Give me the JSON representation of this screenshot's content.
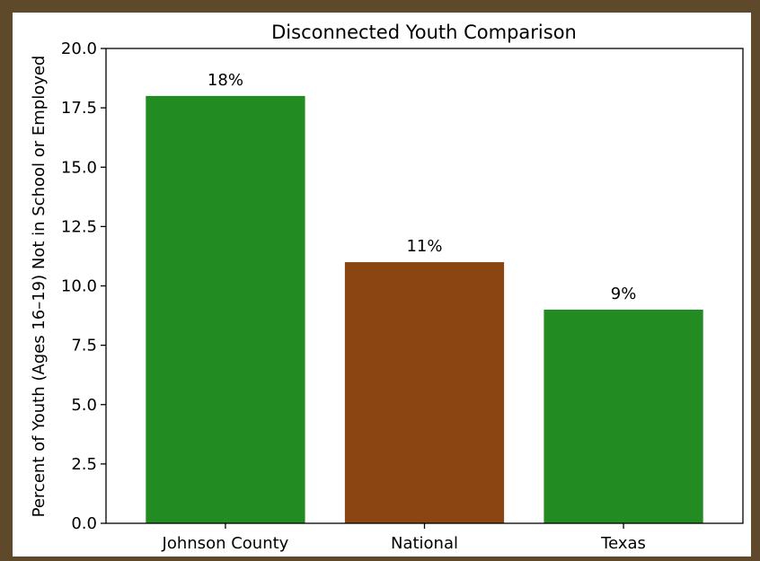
{
  "chart_data": {
    "type": "bar",
    "title": "Disconnected Youth Comparison",
    "xlabel": "",
    "ylabel": "Percent of Youth (Ages 16–19) Not in School or Employed",
    "categories": [
      "Johnson County",
      "National",
      "Texas"
    ],
    "values": [
      18,
      11,
      9
    ],
    "data_labels": [
      "18%",
      "11%",
      "9%"
    ],
    "bar_colors": [
      "#228b22",
      "#8b4513",
      "#228b22"
    ],
    "ylim": [
      0,
      20
    ],
    "yticks": [
      0.0,
      2.5,
      5.0,
      7.5,
      10.0,
      12.5,
      15.0,
      17.5,
      20.0
    ],
    "ytick_labels": [
      "0.0",
      "2.5",
      "5.0",
      "7.5",
      "10.0",
      "12.5",
      "15.0",
      "17.5",
      "20.0"
    ],
    "grid": false,
    "legend": "none"
  },
  "colors": {
    "frame": "#5e4a2a",
    "background": "#ffffff"
  }
}
